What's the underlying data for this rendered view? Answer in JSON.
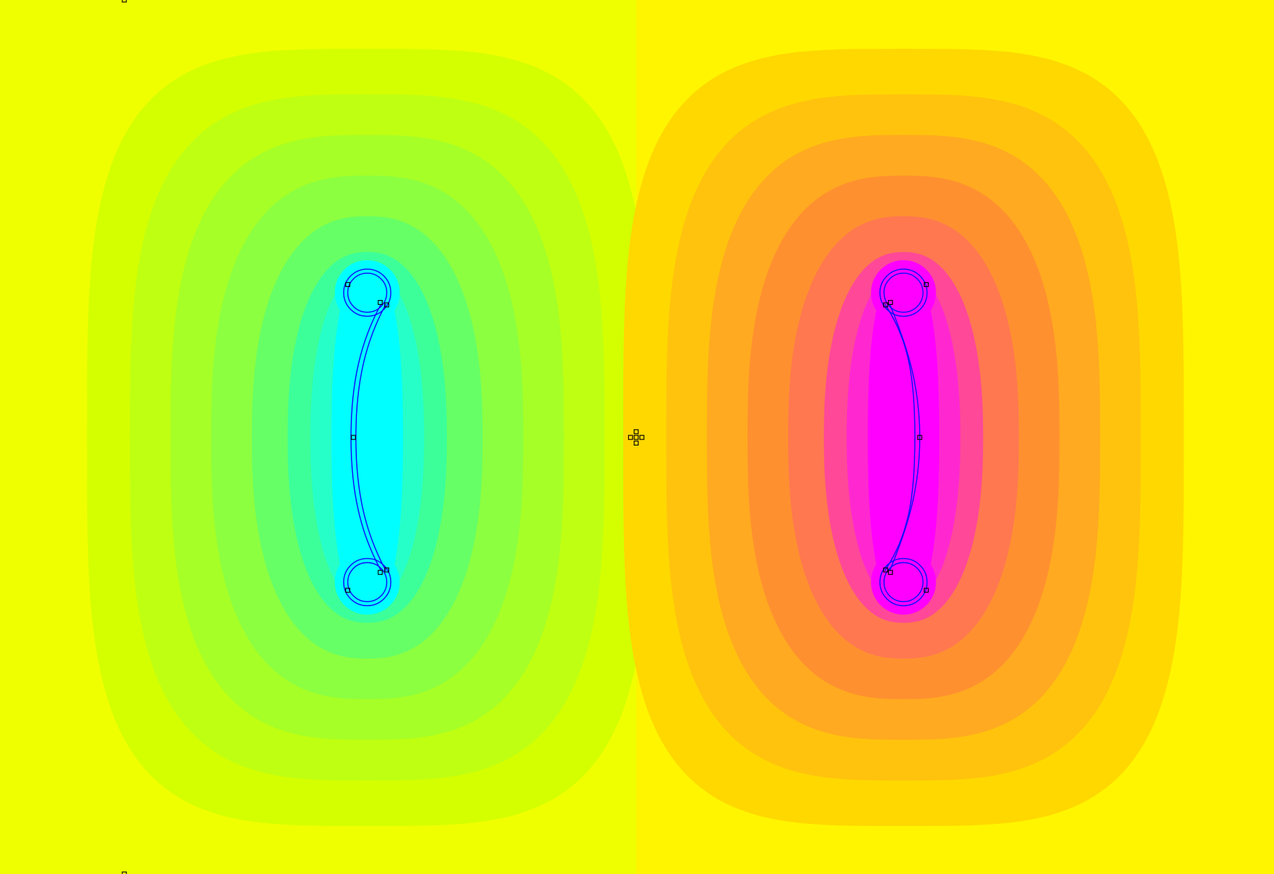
{
  "chart_data": {
    "type": "heatmap",
    "title": "",
    "left_region": {
      "background": "#f0ff00",
      "contour_colors": [
        "#d4ff00",
        "#bfff12",
        "#a6ff26",
        "#8cff40",
        "#66ff66",
        "#3cff99",
        "#26ffc8",
        "#00ffff"
      ]
    },
    "right_region": {
      "background": "#fff500",
      "contour_colors": [
        "#ffd800",
        "#ffc30d",
        "#ffaa20",
        "#ff9030",
        "#ff7850",
        "#ff4898",
        "#ff28d0",
        "#ff00ff"
      ]
    },
    "coil_color": "#1010ff",
    "node_marker_color": "#000000"
  }
}
